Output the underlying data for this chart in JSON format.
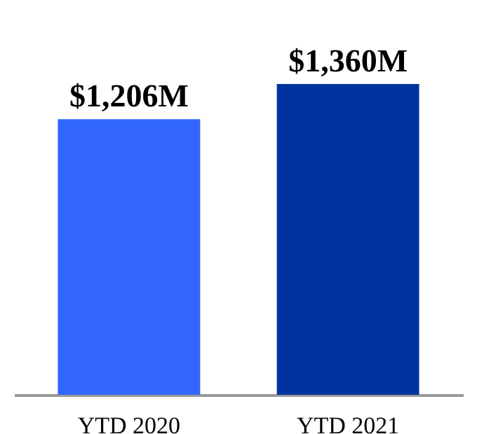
{
  "chart_data": {
    "type": "bar",
    "categories": [
      "YTD 2020",
      "YTD 2021"
    ],
    "values": [
      1206,
      1360
    ],
    "colors": [
      "#3366ff",
      "#0033a0"
    ],
    "value_labels": [
      "$1,206M",
      "$1,360M"
    ],
    "tick_labels": "x"
  }
}
